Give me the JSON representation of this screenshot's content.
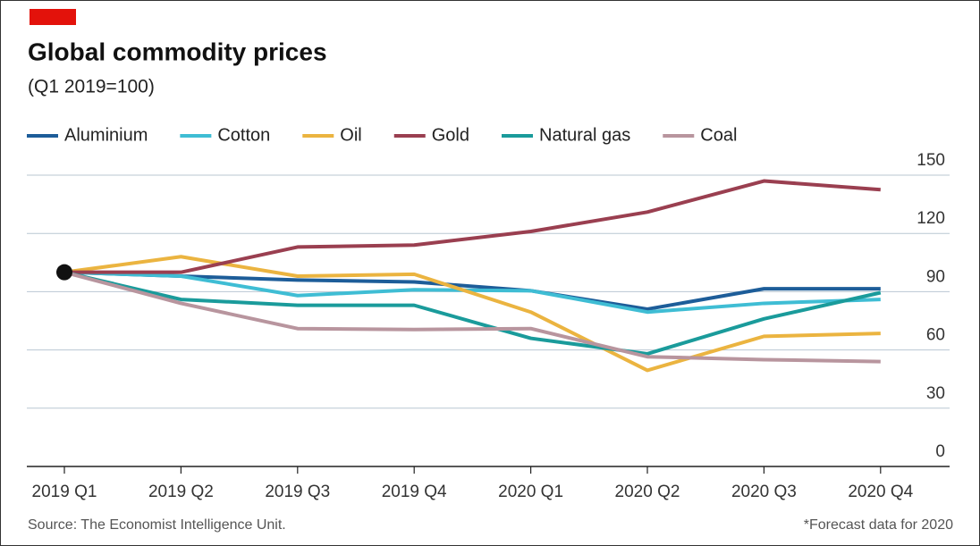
{
  "chart_data": {
    "type": "line",
    "title": "Global commodity prices",
    "subtitle": "(Q1 2019=100)",
    "categories": [
      "2019 Q1",
      "2019 Q2",
      "2019 Q3",
      "2019 Q4",
      "2020 Q1",
      "2020 Q2",
      "2020 Q3",
      "2020 Q4"
    ],
    "series": [
      {
        "name": "Aluminium",
        "color": "#1d5d99",
        "values": [
          100,
          98,
          96,
          95,
          90.5,
          81,
          91.5,
          91.5
        ]
      },
      {
        "name": "Cotton",
        "color": "#3fbdd4",
        "values": [
          100,
          98,
          88,
          91,
          90.5,
          79.5,
          84,
          86
        ]
      },
      {
        "name": "Oil",
        "color": "#ebb440",
        "values": [
          100,
          108,
          98,
          99,
          79.5,
          49.5,
          67,
          68.5
        ]
      },
      {
        "name": "Gold",
        "color": "#9a3f50",
        "values": [
          100,
          100,
          113,
          114,
          121,
          131,
          147,
          142.5
        ]
      },
      {
        "name": "Natural gas",
        "color": "#1a9b9b",
        "values": [
          100,
          86,
          83,
          83,
          66,
          58,
          76,
          89.5
        ]
      },
      {
        "name": "Coal",
        "color": "#b8959e",
        "values": [
          100,
          84,
          71,
          70.5,
          71,
          56.5,
          55,
          54
        ]
      }
    ],
    "ylim": [
      0,
      150
    ],
    "yticks": [
      0,
      30,
      60,
      90,
      120,
      150
    ],
    "grid": true,
    "annotations": [
      "Source: The Economist Intelligence Unit.",
      "*Forecast data for 2020"
    ]
  }
}
